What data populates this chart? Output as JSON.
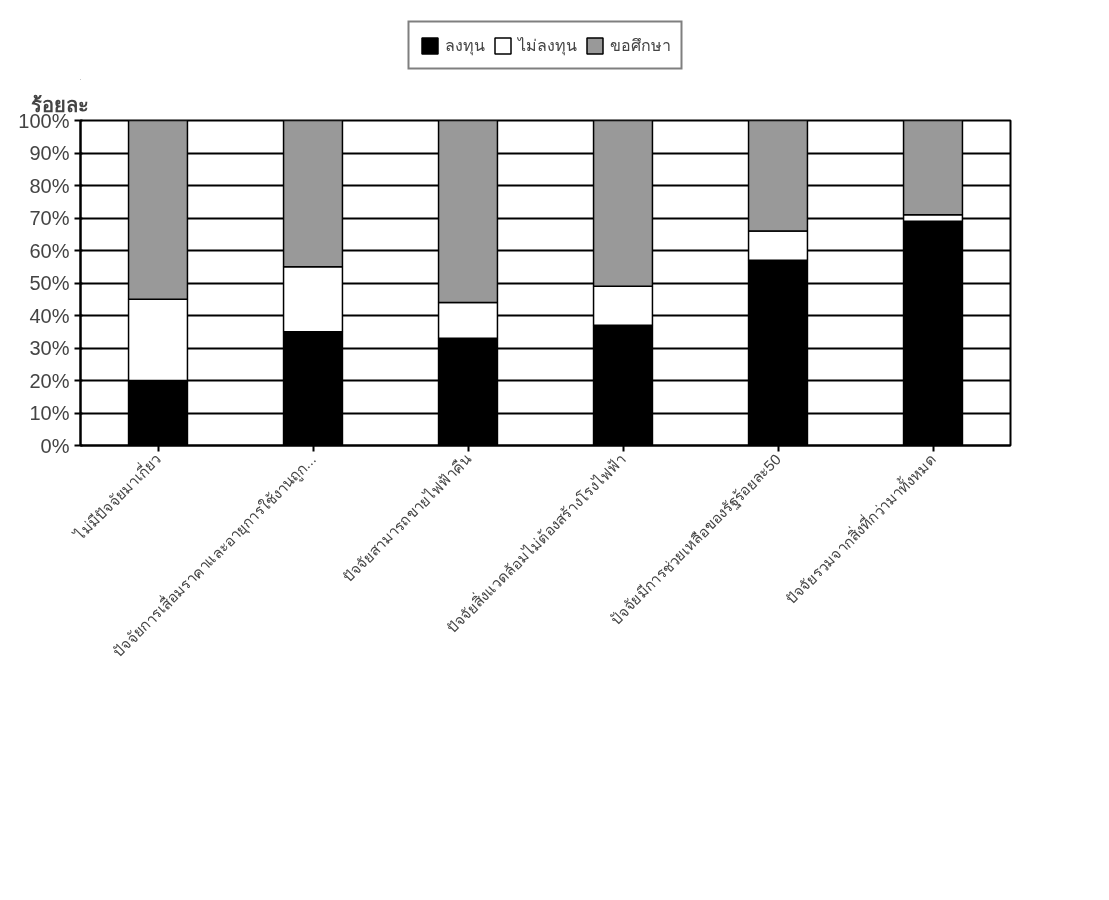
{
  "chart_data": {
    "type": "bar",
    "stacked": true,
    "ylabel": "ร้อยละ",
    "categories": [
      "ไม่มีปัจจัยมาเกี่ยว",
      "ปัจจัยการเสื่อมราคาและอายุการใช้งานถูก...",
      "ปัจจัยสามารถขายไฟฟ้าคืน",
      "ปัจจัยสิ่งแวดล้อมไม่ต้องสร้างโรงไฟฟ้า",
      "ปัจจัยมีการช่วยเหลือของรัฐร้อยละ50",
      "ปัจจัยรวมจากสิ่งที่กว่ามาทั้งหมด"
    ],
    "series": [
      {
        "name": "ลงทุน",
        "color": "#000000",
        "values": [
          20,
          35,
          33,
          37,
          57,
          69
        ]
      },
      {
        "name": "ไม่ลงทุน",
        "color": "#ffffff",
        "values": [
          25,
          20,
          11,
          12,
          9,
          2
        ]
      },
      {
        "name": "ขอศึกษา",
        "color": "#999999",
        "values": [
          55,
          45,
          56,
          51,
          34,
          29
        ]
      }
    ],
    "ylim": [
      0,
      100
    ],
    "yticks": [
      {
        "value": 0,
        "label": "0%"
      },
      {
        "value": 10,
        "label": "10%"
      },
      {
        "value": 20,
        "label": "20%"
      },
      {
        "value": 30,
        "label": "30%"
      },
      {
        "value": 40,
        "label": "40%"
      },
      {
        "value": 50,
        "label": "50%"
      },
      {
        "value": 60,
        "label": "60%"
      },
      {
        "value": 70,
        "label": "70%"
      },
      {
        "value": 80,
        "label": "80%"
      },
      {
        "value": 90,
        "label": "90%"
      },
      {
        "value": 100,
        "label": "100%"
      }
    ],
    "grid": "y",
    "legend": "top"
  }
}
